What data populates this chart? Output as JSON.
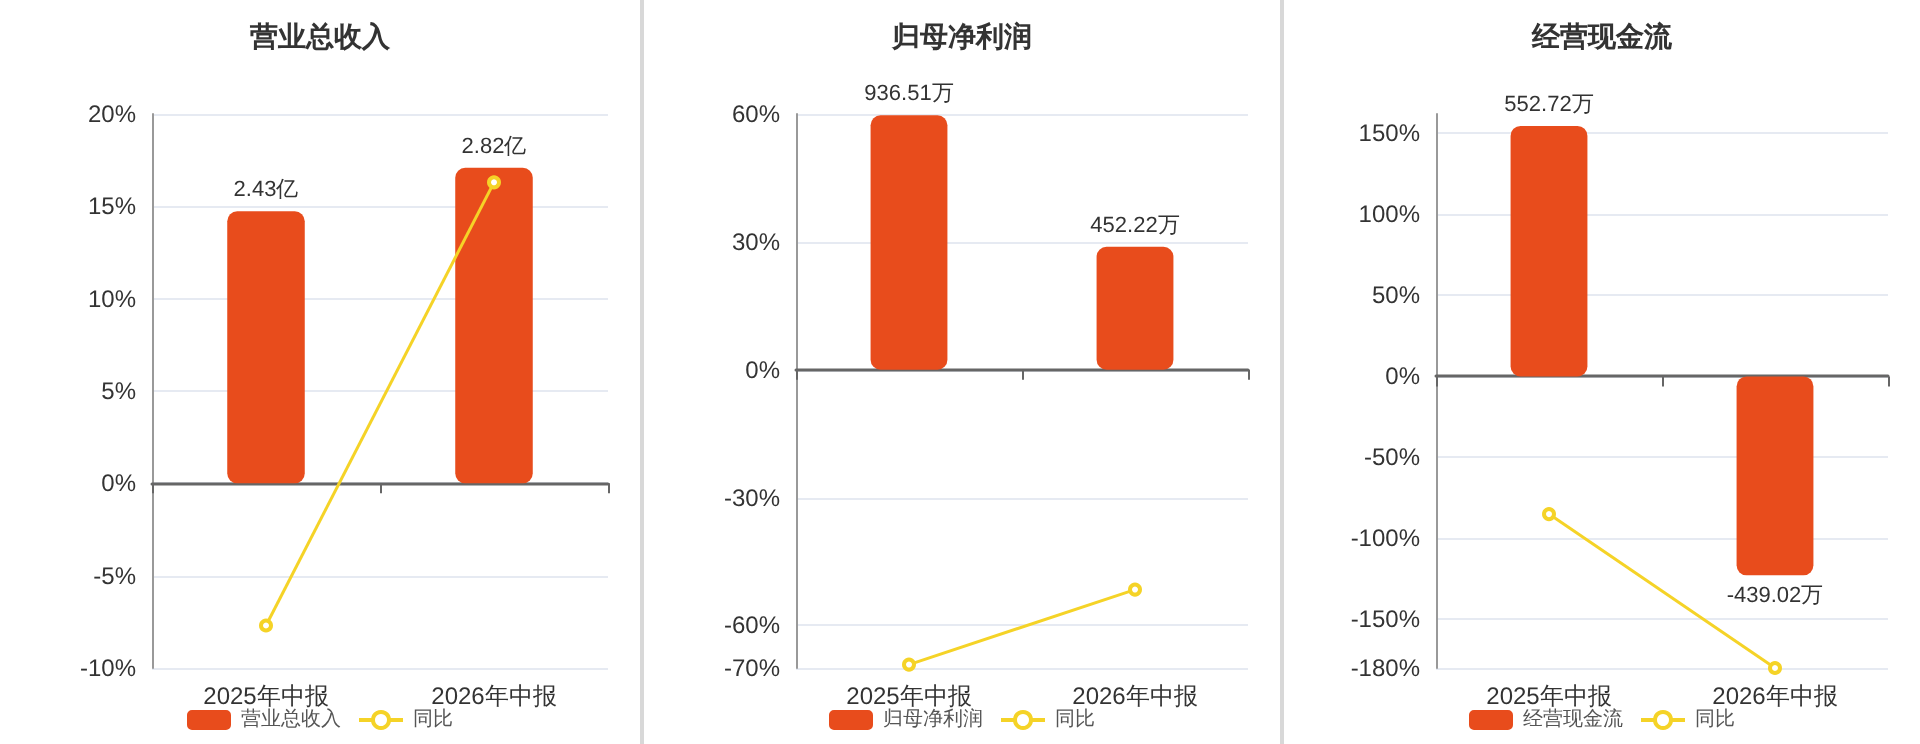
{
  "chart_data": [
    {
      "type": "bar",
      "title": "营业总收入",
      "categories": [
        "2025年中报",
        "2026年中报"
      ],
      "series": [
        {
          "name": "营业总收入",
          "color": "#e84c1c",
          "values": [
            2.43,
            2.82
          ],
          "value_labels": [
            "2.43亿",
            "2.82亿"
          ],
          "axis": "y2"
        },
        {
          "name": "同比",
          "type": "line",
          "color": "#f5d327",
          "values": [
            -7.7,
            16.3
          ]
        }
      ],
      "ylim": [
        -10,
        20
      ],
      "yticks": [
        {
          "value": -10,
          "label": "-10%"
        },
        {
          "value": -5,
          "label": "-5%"
        },
        {
          "value": 0,
          "label": "0%"
        },
        {
          "value": 5,
          "label": "5%"
        },
        {
          "value": 10,
          "label": "10%"
        },
        {
          "value": 15,
          "label": "15%"
        },
        {
          "value": 20,
          "label": "20%"
        }
      ],
      "y2lim": [
        -1.65,
        3.3
      ],
      "grid": "y",
      "legend": "bottom",
      "marker": "circle"
    },
    {
      "type": "bar",
      "title": "归母净利润",
      "categories": [
        "2025年中报",
        "2026年中报"
      ],
      "series": [
        {
          "name": "归母净利润",
          "color": "#e84c1c",
          "values": [
            936.51,
            452.22
          ],
          "value_labels": [
            "936.51万",
            "452.22万"
          ],
          "axis": "y2"
        },
        {
          "name": "同比",
          "type": "line",
          "color": "#f5d327",
          "values": [
            -69.2,
            -51.6
          ]
        }
      ],
      "ylim": [
        -70,
        60
      ],
      "yticks": [
        {
          "value": -70,
          "label": "-70%"
        },
        {
          "value": -60,
          "label": "-60%"
        },
        {
          "value": -30,
          "label": "-30%"
        },
        {
          "value": 0,
          "label": "0%"
        },
        {
          "value": 30,
          "label": "30%"
        },
        {
          "value": 60,
          "label": "60%"
        }
      ],
      "y2lim": [
        -1098,
        941
      ],
      "grid": "y",
      "legend": "bottom",
      "marker": "circle"
    },
    {
      "type": "bar",
      "title": "经营现金流",
      "categories": [
        "2025年中报",
        "2026年中报"
      ],
      "series": [
        {
          "name": "经营现金流",
          "color": "#e84c1c",
          "values": [
            552.72,
            -439.02
          ],
          "value_labels": [
            "552.72万",
            "-439.02万"
          ],
          "axis": "y2"
        },
        {
          "name": "同比",
          "type": "line",
          "color": "#f5d327",
          "values": [
            -85,
            -180
          ]
        }
      ],
      "ylim": [
        -180,
        162
      ],
      "yticks": [
        {
          "value": -180,
          "label": "-180%"
        },
        {
          "value": -150,
          "label": "-150%"
        },
        {
          "value": -100,
          "label": "-100%"
        },
        {
          "value": -50,
          "label": "-50%"
        },
        {
          "value": 0,
          "label": "0%"
        },
        {
          "value": 50,
          "label": "50%"
        },
        {
          "value": 100,
          "label": "100%"
        },
        {
          "value": 150,
          "label": "150%"
        }
      ],
      "y2lim": [
        -643.5,
        579
      ],
      "grid": "y",
      "legend": "bottom",
      "marker": "circle"
    }
  ]
}
